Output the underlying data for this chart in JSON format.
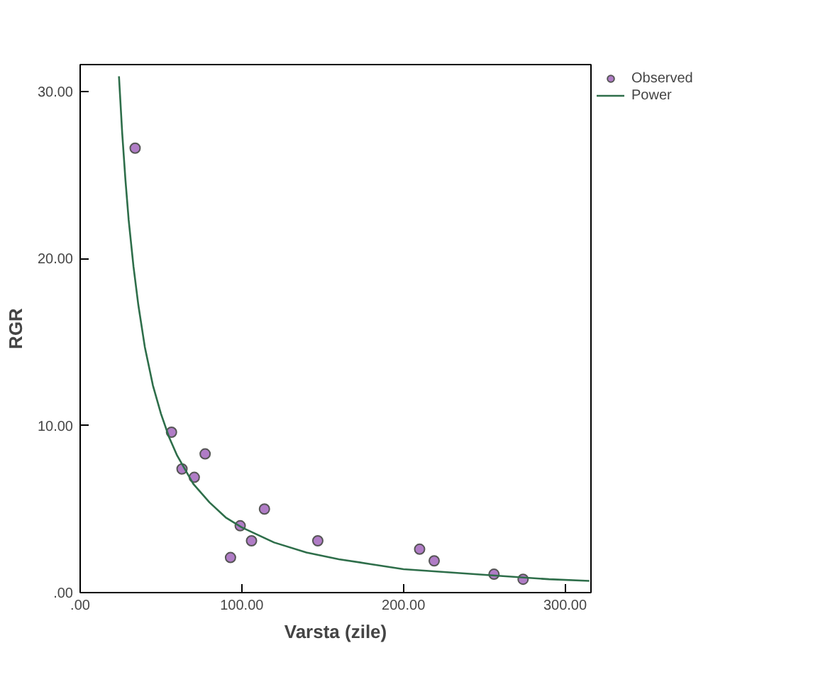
{
  "chart_data": {
    "type": "scatter",
    "xlabel": "Varsta (zile)",
    "ylabel": "RGR",
    "xlim": [
      0,
      316
    ],
    "ylim": [
      0,
      31.6
    ],
    "xticks": [
      {
        "value": 0,
        "label": ".00"
      },
      {
        "value": 100,
        "label": "100.00"
      },
      {
        "value": 200,
        "label": "200.00"
      },
      {
        "value": 300,
        "label": "300.00"
      }
    ],
    "yticks": [
      {
        "value": 0,
        "label": ".00"
      },
      {
        "value": 10,
        "label": "10.00"
      },
      {
        "value": 20,
        "label": "20.00"
      },
      {
        "value": 30,
        "label": "30.00"
      }
    ],
    "grid": false,
    "legend": "top right",
    "series": [
      {
        "name": "Observed",
        "marker": "circle",
        "color": "#b07cc6",
        "x": [
          34,
          56.5,
          63,
          70.6,
          77.3,
          93,
          99,
          106,
          114,
          147,
          210,
          219,
          256,
          274
        ],
        "values": [
          26.6,
          9.6,
          7.4,
          6.9,
          8.3,
          2.1,
          4.0,
          3.1,
          5.0,
          3.1,
          2.6,
          1.9,
          1.1,
          0.8
        ]
      },
      {
        "name": "Power",
        "type": "line",
        "color": "#2e6e4a",
        "x": [
          24,
          26,
          28,
          30,
          33,
          36,
          40,
          45,
          50,
          55,
          60,
          70,
          80,
          90,
          100,
          120,
          140,
          160,
          180,
          200,
          230,
          260,
          290,
          315
        ],
        "values": [
          30.9,
          27.5,
          24.7,
          22.3,
          19.5,
          17.2,
          14.7,
          12.4,
          10.7,
          9.3,
          8.2,
          6.5,
          5.4,
          4.5,
          3.9,
          3.0,
          2.4,
          2.0,
          1.7,
          1.4,
          1.2,
          1.0,
          0.8,
          0.7
        ]
      }
    ]
  }
}
